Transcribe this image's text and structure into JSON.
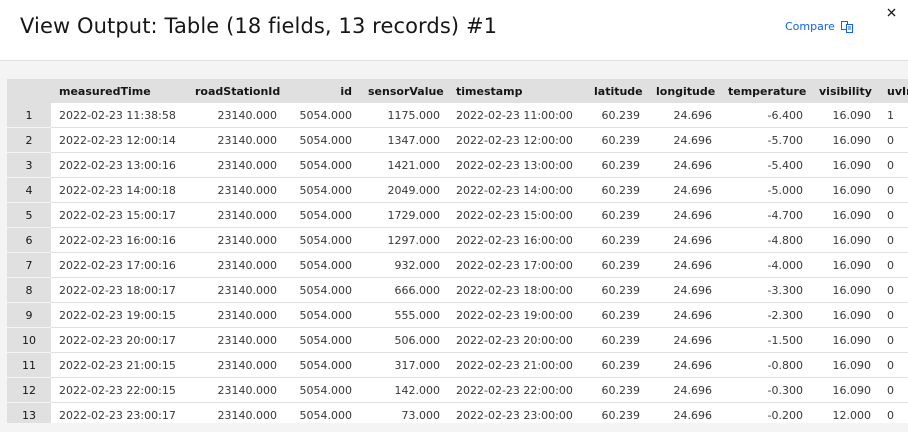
{
  "header": {
    "title": "View Output: Table (18 fields, 13 records) #1",
    "compare_label": "Compare"
  },
  "table": {
    "columns": [
      "measuredTime",
      "roadStationId",
      "id",
      "sensorValue",
      "timestamp",
      "latitude",
      "longitude",
      "temperature",
      "visibility",
      "uvIndex"
    ],
    "rows": [
      {
        "n": "1",
        "measuredTime": "2022-02-23 11:38:58",
        "roadStationId": "23140.000",
        "id": "5054.000",
        "sensorValue": "1175.000",
        "timestamp": "2022-02-23 11:00:00",
        "latitude": "60.239",
        "longitude": "24.696",
        "temperature": "-6.400",
        "visibility": "16.090",
        "uv": "1"
      },
      {
        "n": "2",
        "measuredTime": "2022-02-23 12:00:14",
        "roadStationId": "23140.000",
        "id": "5054.000",
        "sensorValue": "1347.000",
        "timestamp": "2022-02-23 12:00:00",
        "latitude": "60.239",
        "longitude": "24.696",
        "temperature": "-5.700",
        "visibility": "16.090",
        "uv": "0"
      },
      {
        "n": "3",
        "measuredTime": "2022-02-23 13:00:16",
        "roadStationId": "23140.000",
        "id": "5054.000",
        "sensorValue": "1421.000",
        "timestamp": "2022-02-23 13:00:00",
        "latitude": "60.239",
        "longitude": "24.696",
        "temperature": "-5.400",
        "visibility": "16.090",
        "uv": "0"
      },
      {
        "n": "4",
        "measuredTime": "2022-02-23 14:00:18",
        "roadStationId": "23140.000",
        "id": "5054.000",
        "sensorValue": "2049.000",
        "timestamp": "2022-02-23 14:00:00",
        "latitude": "60.239",
        "longitude": "24.696",
        "temperature": "-5.000",
        "visibility": "16.090",
        "uv": "0"
      },
      {
        "n": "5",
        "measuredTime": "2022-02-23 15:00:17",
        "roadStationId": "23140.000",
        "id": "5054.000",
        "sensorValue": "1729.000",
        "timestamp": "2022-02-23 15:00:00",
        "latitude": "60.239",
        "longitude": "24.696",
        "temperature": "-4.700",
        "visibility": "16.090",
        "uv": "0"
      },
      {
        "n": "6",
        "measuredTime": "2022-02-23 16:00:16",
        "roadStationId": "23140.000",
        "id": "5054.000",
        "sensorValue": "1297.000",
        "timestamp": "2022-02-23 16:00:00",
        "latitude": "60.239",
        "longitude": "24.696",
        "temperature": "-4.800",
        "visibility": "16.090",
        "uv": "0"
      },
      {
        "n": "7",
        "measuredTime": "2022-02-23 17:00:16",
        "roadStationId": "23140.000",
        "id": "5054.000",
        "sensorValue": "932.000",
        "timestamp": "2022-02-23 17:00:00",
        "latitude": "60.239",
        "longitude": "24.696",
        "temperature": "-4.000",
        "visibility": "16.090",
        "uv": "0"
      },
      {
        "n": "8",
        "measuredTime": "2022-02-23 18:00:17",
        "roadStationId": "23140.000",
        "id": "5054.000",
        "sensorValue": "666.000",
        "timestamp": "2022-02-23 18:00:00",
        "latitude": "60.239",
        "longitude": "24.696",
        "temperature": "-3.300",
        "visibility": "16.090",
        "uv": "0"
      },
      {
        "n": "9",
        "measuredTime": "2022-02-23 19:00:15",
        "roadStationId": "23140.000",
        "id": "5054.000",
        "sensorValue": "555.000",
        "timestamp": "2022-02-23 19:00:00",
        "latitude": "60.239",
        "longitude": "24.696",
        "temperature": "-2.300",
        "visibility": "16.090",
        "uv": "0"
      },
      {
        "n": "10",
        "measuredTime": "2022-02-23 20:00:17",
        "roadStationId": "23140.000",
        "id": "5054.000",
        "sensorValue": "506.000",
        "timestamp": "2022-02-23 20:00:00",
        "latitude": "60.239",
        "longitude": "24.696",
        "temperature": "-1.500",
        "visibility": "16.090",
        "uv": "0"
      },
      {
        "n": "11",
        "measuredTime": "2022-02-23 21:00:15",
        "roadStationId": "23140.000",
        "id": "5054.000",
        "sensorValue": "317.000",
        "timestamp": "2022-02-23 21:00:00",
        "latitude": "60.239",
        "longitude": "24.696",
        "temperature": "-0.800",
        "visibility": "16.090",
        "uv": "0"
      },
      {
        "n": "12",
        "measuredTime": "2022-02-23 22:00:15",
        "roadStationId": "23140.000",
        "id": "5054.000",
        "sensorValue": "142.000",
        "timestamp": "2022-02-23 22:00:00",
        "latitude": "60.239",
        "longitude": "24.696",
        "temperature": "-0.300",
        "visibility": "16.090",
        "uv": "0"
      },
      {
        "n": "13",
        "measuredTime": "2022-02-23 23:00:17",
        "roadStationId": "23140.000",
        "id": "5054.000",
        "sensorValue": "73.000",
        "timestamp": "2022-02-23 23:00:00",
        "latitude": "60.239",
        "longitude": "24.696",
        "temperature": "-0.200",
        "visibility": "12.000",
        "uv": "0"
      }
    ]
  },
  "icons": {
    "compare": "compare-icon",
    "close": "close-icon"
  },
  "colors": {
    "accent": "#0f62fe",
    "header_bg": "#e0e0e0"
  }
}
